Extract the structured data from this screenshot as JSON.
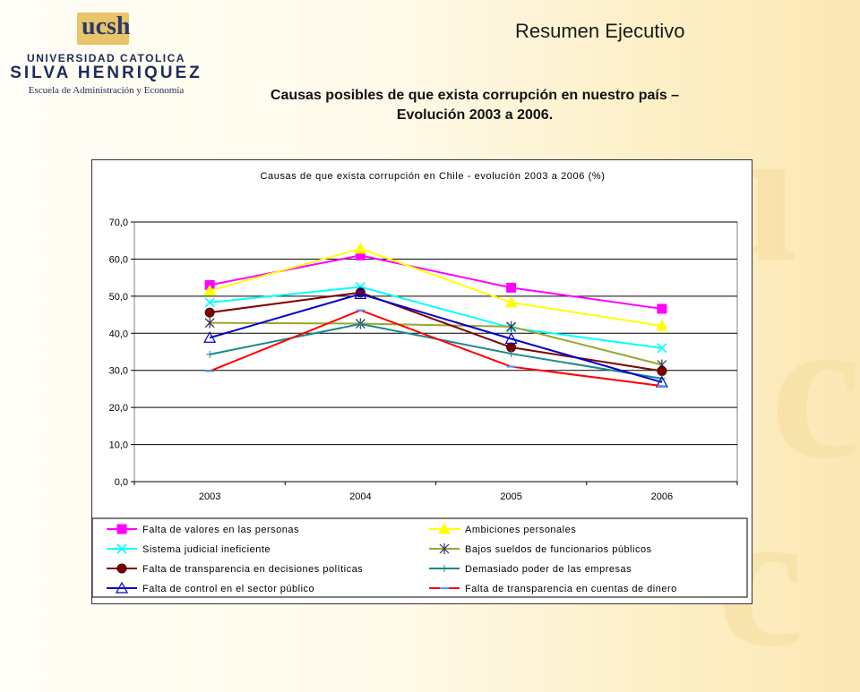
{
  "header": {
    "logo": {
      "ucsh": "ucsh",
      "universidad": "UNIVERSIDAD CATOLICA",
      "silva": "SILVA HENRIQUEZ",
      "escuela": "Escuela de Administración y Economía"
    },
    "page_title": "Resumen Ejecutivo",
    "subtitle_line1": "Causas posibles de que exista corrupción en nuestro país –",
    "subtitle_line2": "Evolución 2003 a 2006."
  },
  "chart_data": {
    "type": "line",
    "title": "Causas de que exista corrupción en Chile - evolución 2003 a 2006 (%)",
    "categories": [
      "2003",
      "2004",
      "2005",
      "2006"
    ],
    "ylim": [
      0,
      70
    ],
    "yticks": [
      "0,0",
      "10,0",
      "20,0",
      "30,0",
      "40,0",
      "50,0",
      "60,0",
      "70,0"
    ],
    "grid": true,
    "legend_position": "bottom",
    "series": [
      {
        "name": "Falta de valores en las personas",
        "values": [
          53.0,
          61.0,
          52.3,
          46.6
        ],
        "color": "#ff00ff",
        "marker": "square"
      },
      {
        "name": "Ambiciones personales",
        "values": [
          51.5,
          62.8,
          48.3,
          42.0
        ],
        "color": "#ffff00",
        "marker": "triangle"
      },
      {
        "name": "Sistema judicial ineficiente",
        "values": [
          48.3,
          52.5,
          41.5,
          36.0
        ],
        "color": "#00ffff",
        "marker": "x"
      },
      {
        "name": "Bajos sueldos de funcionarios públicos",
        "values": [
          42.8,
          42.6,
          41.8,
          31.5
        ],
        "color": "#99a62e",
        "marker": "star"
      },
      {
        "name": "Falta de transparencia en decisiones políticas",
        "values": [
          45.6,
          51.0,
          36.2,
          29.8
        ],
        "color": "#800000",
        "marker": "circle"
      },
      {
        "name": "Demasiado poder de las empresas",
        "values": [
          34.3,
          42.5,
          34.5,
          27.8
        ],
        "color": "#1a8a8a",
        "marker": "plus"
      },
      {
        "name": "Falta de control en el sector público",
        "values": [
          38.8,
          50.6,
          38.5,
          26.8
        ],
        "color": "#0000cc",
        "marker": "opentriangle"
      },
      {
        "name": "Falta de transparencia en cuentas de dinero",
        "values": [
          29.8,
          46.2,
          31.0,
          25.8
        ],
        "color": "#ff0000",
        "marker": "dash"
      }
    ]
  }
}
